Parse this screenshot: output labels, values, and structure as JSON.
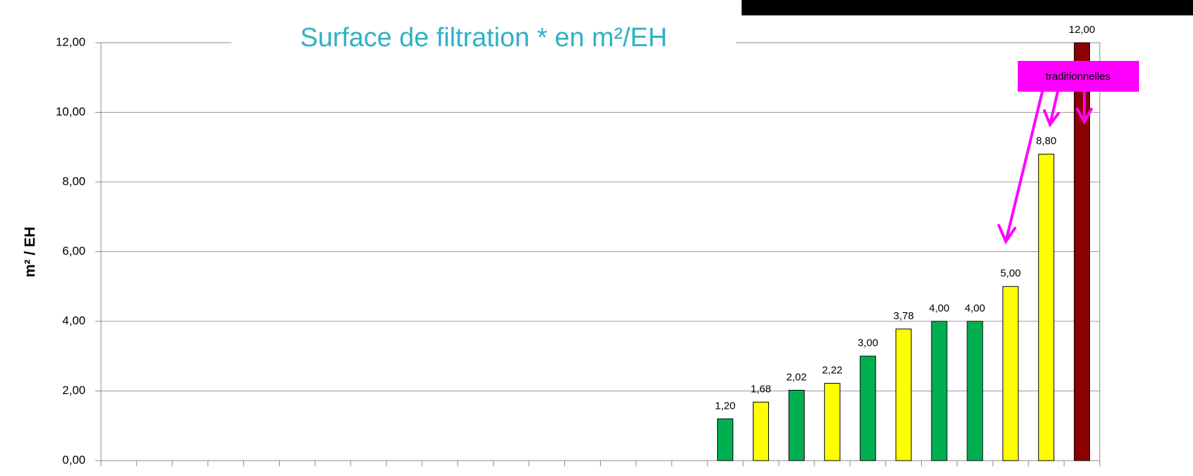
{
  "chart_data": {
    "type": "bar",
    "title": "Surface de filtration * en m²/EH",
    "ylabel": "m² / EH",
    "annotation": "traditionnelles",
    "categories": [
      null,
      null,
      null,
      null,
      null,
      null,
      null,
      null,
      null,
      null,
      null,
      null,
      null,
      null,
      null,
      null,
      null,
      null,
      null,
      null,
      null,
      null,
      null,
      null,
      null,
      null,
      null,
      null
    ],
    "values": [
      null,
      null,
      null,
      null,
      null,
      null,
      null,
      null,
      null,
      null,
      null,
      null,
      null,
      null,
      null,
      null,
      null,
      1.2,
      1.68,
      2.02,
      2.22,
      3.0,
      3.78,
      4.0,
      4.0,
      5.0,
      8.8,
      12.0
    ],
    "value_labels": [
      null,
      null,
      null,
      null,
      null,
      null,
      null,
      null,
      null,
      null,
      null,
      null,
      null,
      null,
      null,
      null,
      null,
      "1,20",
      "1,68",
      "2,02",
      "2,22",
      "3,00",
      "3,78",
      "4,00",
      "4,00",
      "5,00",
      "8,80",
      "12,00"
    ],
    "colors": [
      null,
      null,
      null,
      null,
      null,
      null,
      null,
      null,
      null,
      null,
      null,
      null,
      null,
      null,
      null,
      null,
      null,
      "#00b050",
      "#ffff00",
      "#00b050",
      "#ffff00",
      "#00b050",
      "#ffff00",
      "#00b050",
      "#00b050",
      "#ffff00",
      "#ffff00",
      "#8b0000"
    ],
    "ylim": [
      0,
      12
    ],
    "yticks": [
      {
        "value": 0,
        "label": "0,00"
      },
      {
        "value": 2,
        "label": "2,00"
      },
      {
        "value": 4,
        "label": "4,00"
      },
      {
        "value": 6,
        "label": "6,00"
      },
      {
        "value": 8,
        "label": "8,00"
      },
      {
        "value": 10,
        "label": "10,00"
      },
      {
        "value": 12,
        "label": "12,00"
      }
    ],
    "grid": true
  }
}
